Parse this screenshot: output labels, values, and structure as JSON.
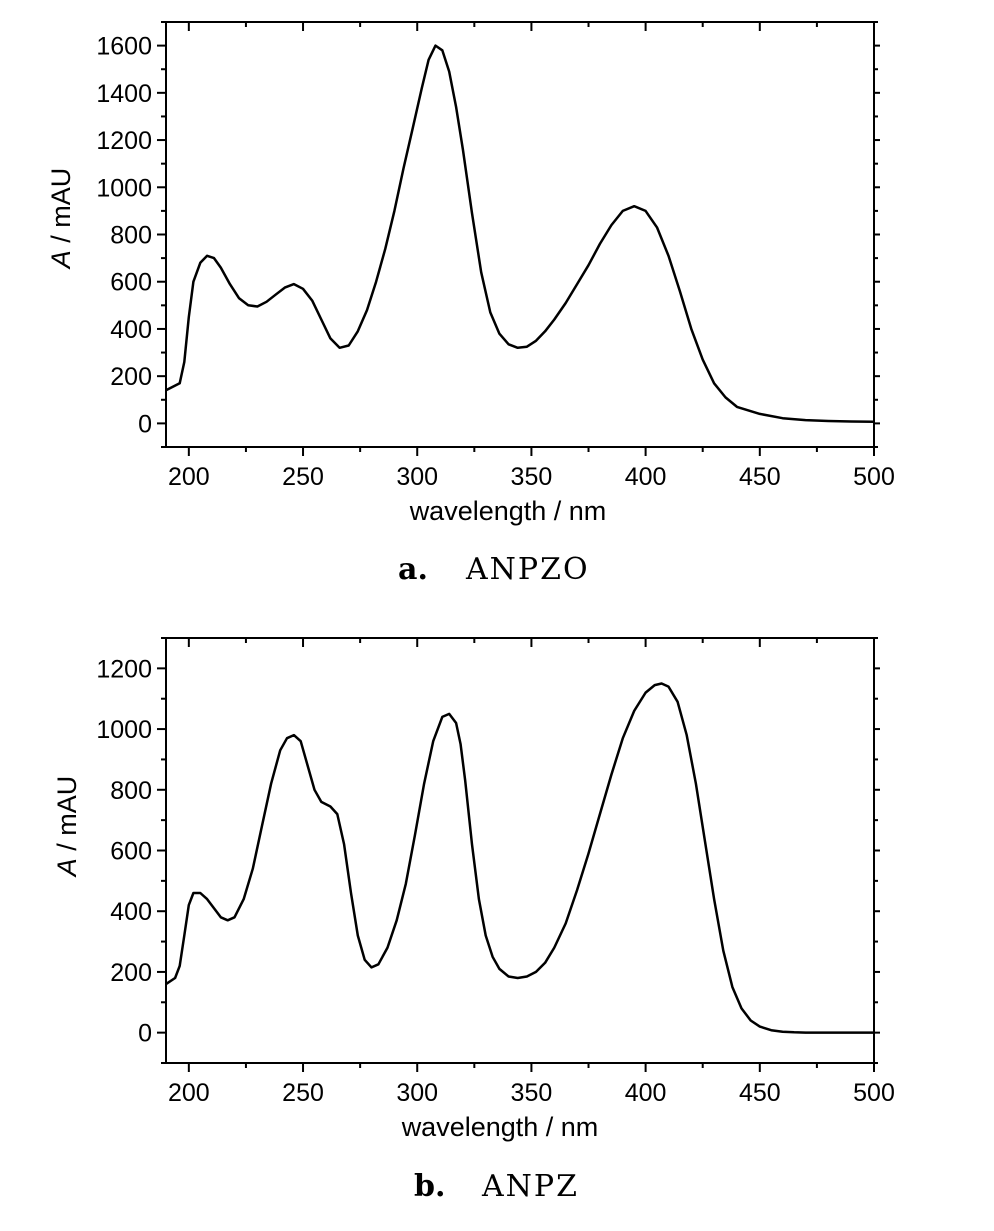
{
  "chart_data": [
    {
      "type": "line",
      "caption_letter": "a.",
      "caption_name": "ANPZO",
      "xlabel": "wavelength / nm",
      "ylabel_italic": "A",
      "ylabel_rest": " / mAU",
      "xlim": [
        190,
        500
      ],
      "ylim": [
        -100,
        1700
      ],
      "xticks": [
        200,
        250,
        300,
        350,
        400,
        450,
        500
      ],
      "yticks": [
        0,
        200,
        400,
        600,
        800,
        1000,
        1200,
        1400,
        1600
      ],
      "series": [
        {
          "x": [
            190,
            196,
            198,
            200,
            202,
            205,
            208,
            211,
            214,
            218,
            222,
            226,
            230,
            234,
            238,
            242,
            246,
            250,
            254,
            258,
            262,
            266,
            270,
            274,
            278,
            282,
            286,
            290,
            294,
            298,
            302,
            305,
            308,
            311,
            314,
            317,
            320,
            324,
            328,
            332,
            336,
            340,
            344,
            348,
            352,
            356,
            360,
            365,
            370,
            375,
            380,
            385,
            390,
            395,
            400,
            405,
            410,
            415,
            420,
            425,
            430,
            435,
            440,
            450,
            460,
            470,
            480,
            490,
            500
          ],
          "y": [
            140,
            170,
            260,
            450,
            600,
            680,
            710,
            700,
            660,
            590,
            530,
            500,
            495,
            515,
            545,
            575,
            590,
            570,
            520,
            440,
            360,
            320,
            330,
            390,
            480,
            600,
            740,
            900,
            1080,
            1250,
            1420,
            1540,
            1600,
            1580,
            1490,
            1340,
            1160,
            890,
            640,
            470,
            380,
            335,
            320,
            325,
            350,
            390,
            440,
            510,
            590,
            670,
            760,
            840,
            900,
            920,
            900,
            830,
            710,
            560,
            400,
            270,
            170,
            110,
            70,
            40,
            22,
            14,
            10,
            8,
            7
          ]
        }
      ]
    },
    {
      "type": "line",
      "caption_letter": "b.",
      "caption_name": "ANPZ",
      "xlabel": "wavelength / nm",
      "ylabel_italic": "A",
      "ylabel_rest": " / mAU",
      "xlim": [
        190,
        500
      ],
      "ylim": [
        -100,
        1300
      ],
      "xticks": [
        200,
        250,
        300,
        350,
        400,
        450,
        500
      ],
      "yticks": [
        0,
        200,
        400,
        600,
        800,
        1000,
        1200
      ],
      "series": [
        {
          "x": [
            190,
            194,
            196,
            198,
            200,
            202,
            205,
            208,
            211,
            214,
            217,
            220,
            224,
            228,
            232,
            236,
            240,
            243,
            246,
            249,
            252,
            255,
            258,
            262,
            265,
            268,
            271,
            274,
            277,
            280,
            283,
            287,
            291,
            295,
            299,
            303,
            307,
            311,
            314,
            317,
            319,
            321,
            324,
            327,
            330,
            333,
            336,
            340,
            344,
            348,
            352,
            356,
            360,
            365,
            370,
            375,
            380,
            385,
            390,
            395,
            400,
            404,
            407,
            410,
            414,
            418,
            422,
            426,
            430,
            434,
            438,
            442,
            446,
            450,
            455,
            460,
            465,
            470,
            480,
            490,
            500
          ],
          "y": [
            160,
            180,
            220,
            320,
            420,
            460,
            460,
            440,
            410,
            380,
            370,
            380,
            440,
            540,
            680,
            820,
            930,
            970,
            980,
            960,
            880,
            800,
            760,
            745,
            720,
            620,
            460,
            320,
            240,
            215,
            225,
            280,
            370,
            490,
            650,
            820,
            960,
            1040,
            1050,
            1020,
            950,
            830,
            620,
            440,
            320,
            250,
            210,
            185,
            180,
            185,
            200,
            230,
            280,
            360,
            470,
            590,
            720,
            850,
            970,
            1060,
            1120,
            1145,
            1150,
            1140,
            1090,
            980,
            820,
            630,
            440,
            270,
            150,
            80,
            40,
            20,
            8,
            3,
            1,
            0,
            0,
            0,
            0
          ]
        }
      ]
    }
  ]
}
